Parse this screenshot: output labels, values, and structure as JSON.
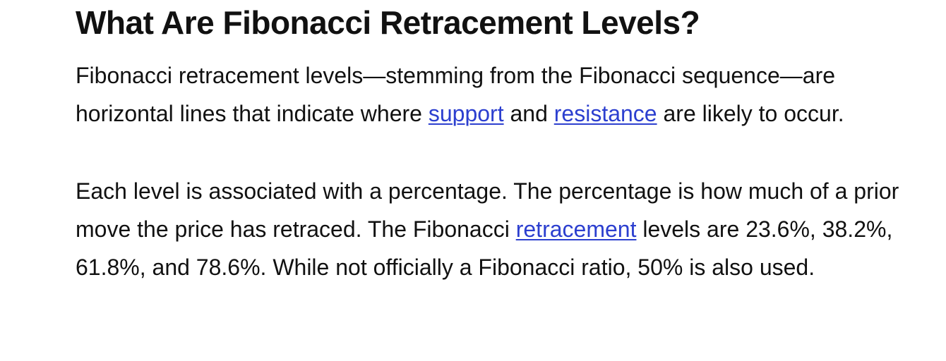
{
  "article": {
    "heading": "What Are Fibonacci Retracement Levels?",
    "paragraph1": {
      "text_before_support": "Fibonacci retracement levels—stemming from the Fibonacci sequence—are horizontal lines that indicate where ",
      "link_support": "support",
      "text_between": " and ",
      "link_resistance": "resistance",
      "text_after": " are likely to occur."
    },
    "paragraph2": {
      "text_before_link": "Each level is associated with a percentage. The percentage is how much of a prior move the price has retraced. The Fibonacci ",
      "link_retracement": "retracement",
      "text_after": " levels are 23.6%, 38.2%, 61.8%, and 78.6%. While not officially a Fibonacci ratio, 50% is also used."
    }
  },
  "colors": {
    "text": "#111111",
    "link": "#2c3fcf",
    "background": "#ffffff"
  }
}
